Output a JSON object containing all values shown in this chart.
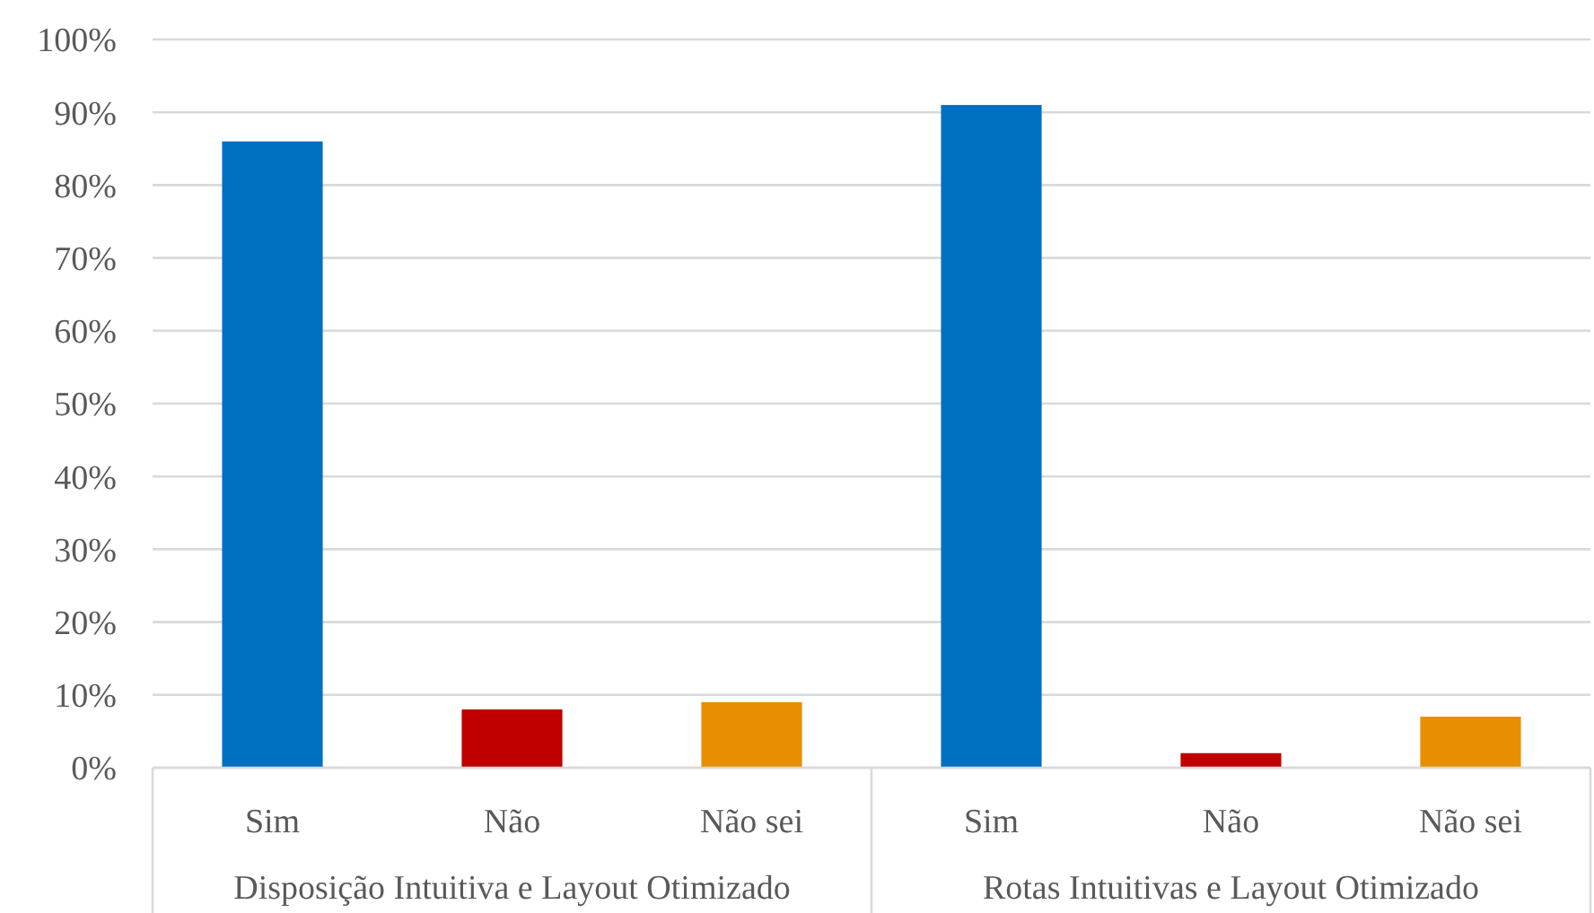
{
  "chart_data": {
    "type": "bar",
    "categories": [
      "Sim",
      "Não",
      "Não sei",
      "Sim",
      "Não",
      "Não sei"
    ],
    "values": [
      86,
      8,
      9,
      91,
      2,
      7
    ],
    "colors": [
      "#0070c0",
      "#c00000",
      "#e88e00",
      "#0070c0",
      "#c00000",
      "#e88e00"
    ],
    "ylim": [
      0,
      100
    ],
    "yticks": [
      {
        "value": 0,
        "label": "0%"
      },
      {
        "value": 10,
        "label": "10%"
      },
      {
        "value": 20,
        "label": "20%"
      },
      {
        "value": 30,
        "label": "30%"
      },
      {
        "value": 40,
        "label": "40%"
      },
      {
        "value": 50,
        "label": "50%"
      },
      {
        "value": 60,
        "label": "60%"
      },
      {
        "value": 70,
        "label": "70%"
      },
      {
        "value": 80,
        "label": "80%"
      },
      {
        "value": 90,
        "label": "90%"
      },
      {
        "value": 100,
        "label": "100%"
      }
    ],
    "grid": "y",
    "annotations": [
      "Disposição Intuitiva e Layout Otimizado",
      "Rotas Intuitivas e Layout Otimizado"
    ]
  }
}
